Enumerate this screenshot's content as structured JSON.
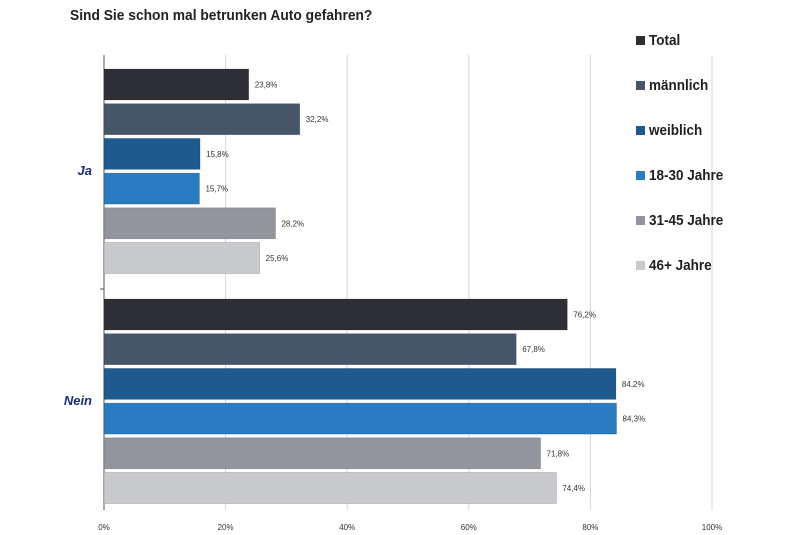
{
  "chart_data": {
    "type": "bar",
    "orientation": "horizontal",
    "title": "Sind Sie schon mal betrunken Auto gefahren?",
    "categories": [
      "Ja",
      "Nein"
    ],
    "series": [
      {
        "name": "Total",
        "color": "#2e2f34",
        "values": [
          23.8,
          76.2
        ],
        "labels": [
          "23,8%",
          "76,2%"
        ]
      },
      {
        "name": "männlich",
        "color": "#475569",
        "values": [
          32.2,
          67.8
        ],
        "labels": [
          "32,2%",
          "67,8%"
        ]
      },
      {
        "name": "weiblich",
        "color": "#1f5a8f",
        "values": [
          15.8,
          84.2
        ],
        "labels": [
          "15,8%",
          "84,2%"
        ]
      },
      {
        "name": "18-30 Jahre",
        "color": "#2b7bc3",
        "values": [
          15.7,
          84.3
        ],
        "labels": [
          "15,7%",
          "84,3%"
        ]
      },
      {
        "name": "31-45 Jahre",
        "color": "#93959c",
        "values": [
          28.2,
          71.8
        ],
        "labels": [
          "28,2%",
          "71,8%"
        ]
      },
      {
        "name": "46+ Jahre",
        "color": "#c9cacd",
        "values": [
          25.6,
          74.4
        ],
        "labels": [
          "25,6%",
          "74,4%"
        ]
      }
    ],
    "xlim": [
      0,
      100
    ],
    "x_ticks": [
      0,
      20,
      40,
      60,
      80,
      100
    ],
    "x_tick_labels": [
      "0%",
      "20%",
      "40%",
      "60%",
      "80%",
      "100%"
    ],
    "grid": true,
    "legend_position": "right"
  }
}
